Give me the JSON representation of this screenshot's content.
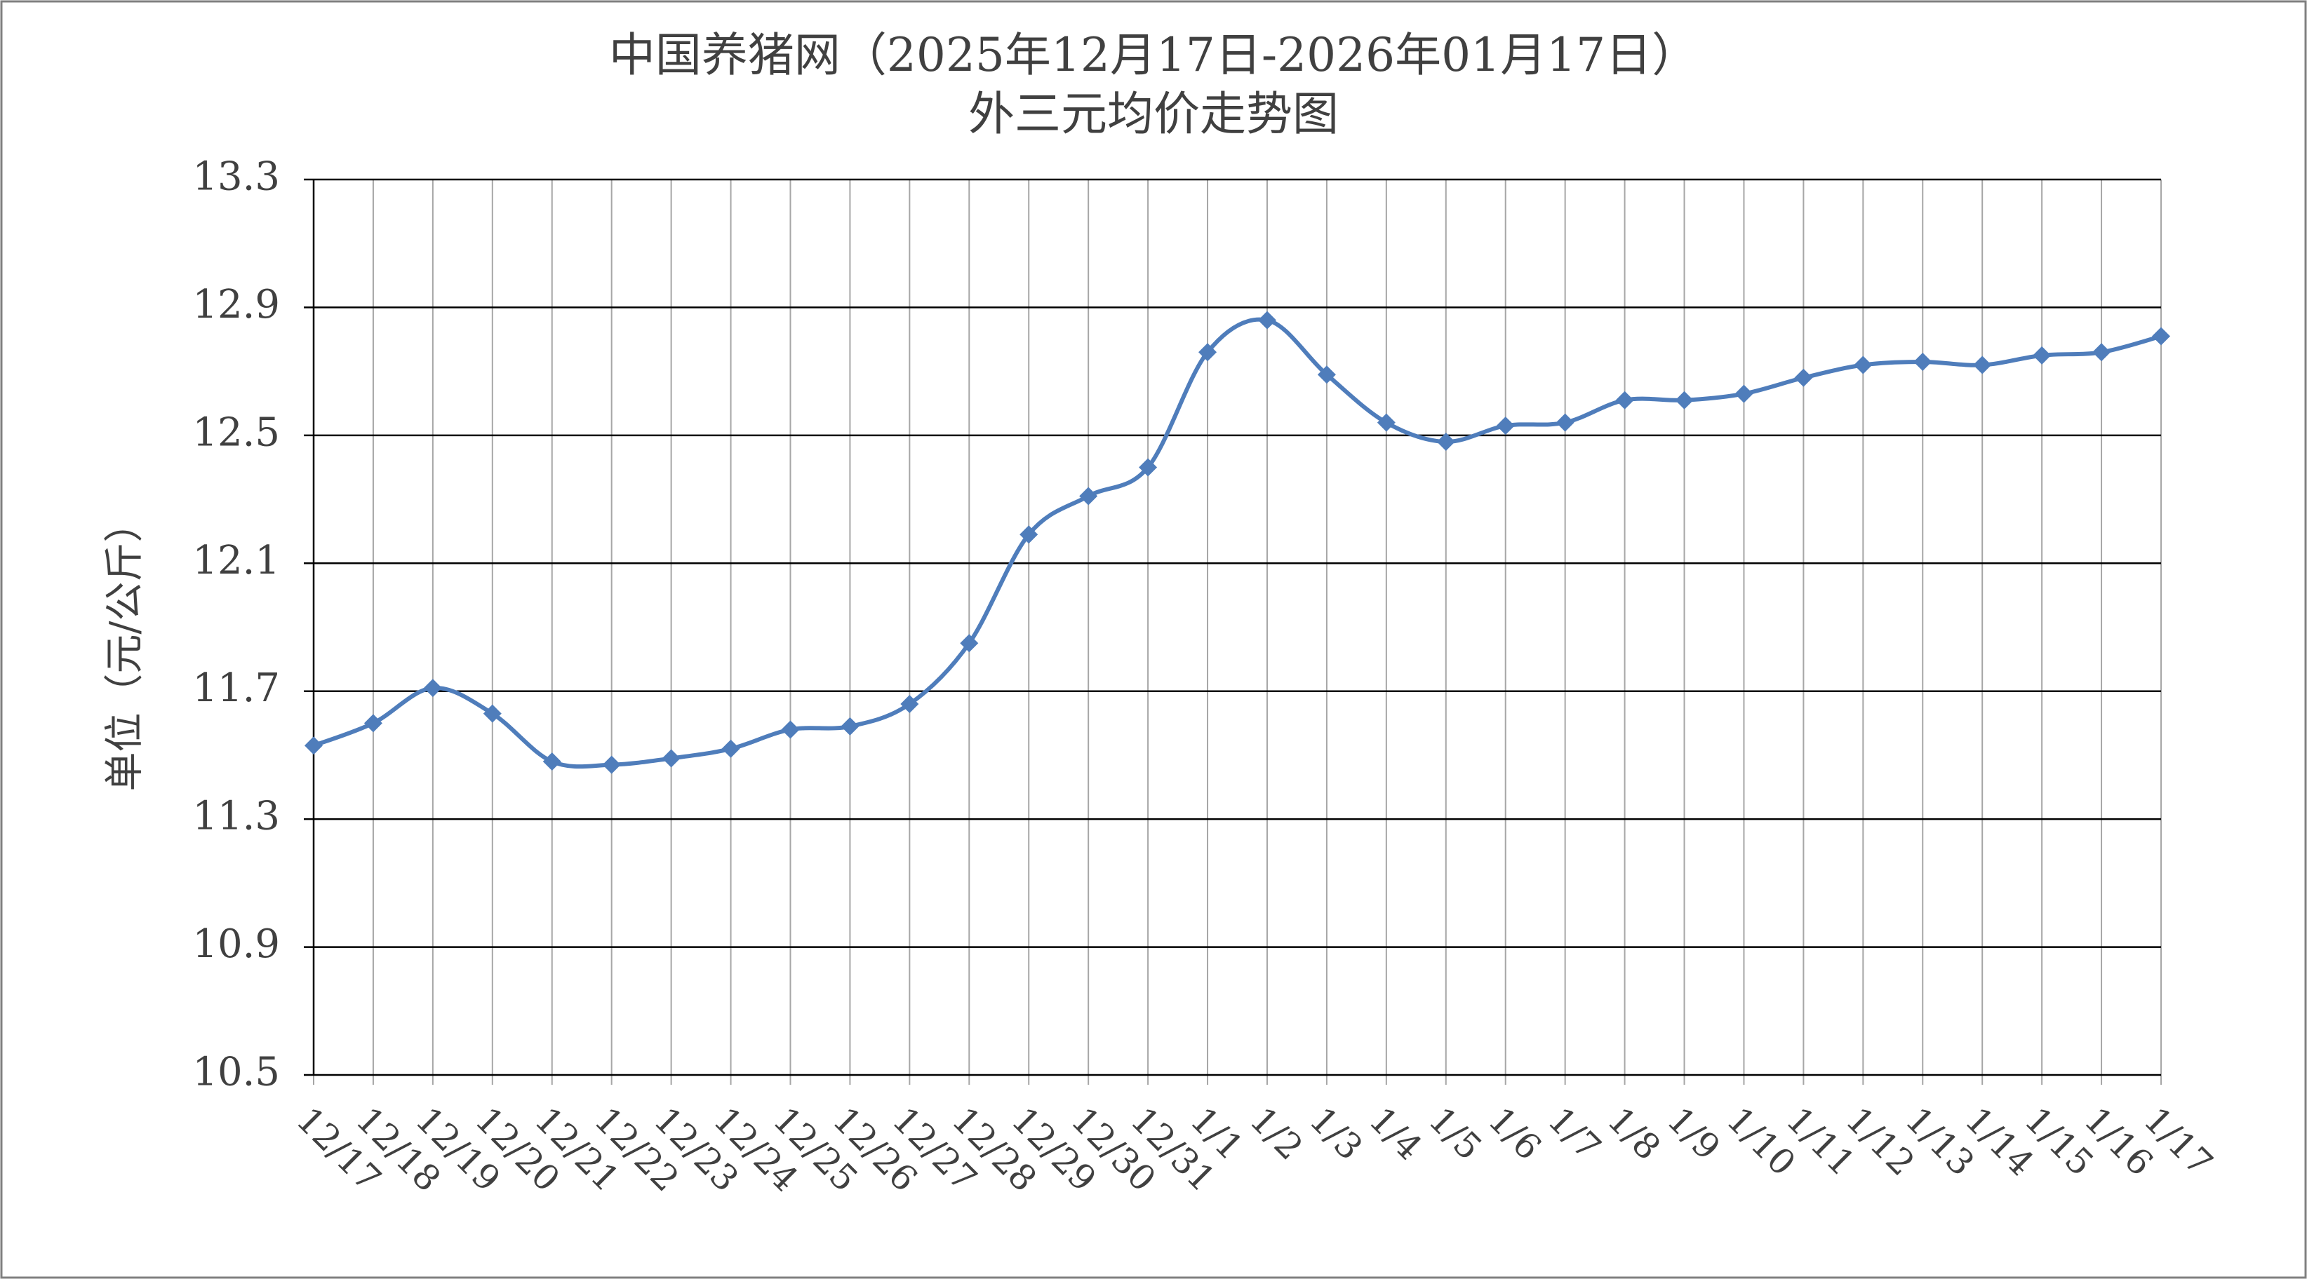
{
  "chart_data": {
    "type": "line",
    "title": [
      "中国养猪网（2025年12月17日-2026年01月17日）",
      "外三元均价走势图"
    ],
    "y_label": "单位（元/公斤）",
    "categories": [
      "12/17",
      "12/18",
      "12/19",
      "12/20",
      "12/21",
      "12/22",
      "12/23",
      "12/24",
      "12/25",
      "12/26",
      "12/27",
      "12/28",
      "12/29",
      "12/30",
      "12/31",
      "1/1",
      "1/2",
      "1/3",
      "1/4",
      "1/5",
      "1/6",
      "1/7",
      "1/8",
      "1/9",
      "1/10",
      "1/11",
      "1/12",
      "1/13",
      "1/14",
      "1/15",
      "1/16",
      "1/17"
    ],
    "series": [
      {
        "color": "#4f7dbb",
        "values": [
          11.53,
          11.6,
          11.71,
          11.63,
          11.48,
          11.47,
          11.49,
          11.52,
          11.58,
          11.59,
          11.66,
          11.85,
          12.19,
          12.31,
          12.4,
          12.76,
          12.86,
          12.69,
          12.54,
          12.48,
          12.53,
          12.54,
          12.61,
          12.61,
          12.63,
          12.68,
          12.72,
          12.73,
          12.72,
          12.75,
          12.76,
          12.81
        ]
      }
    ],
    "ylim": [
      10.5,
      13.3
    ],
    "yticks": [
      10.5,
      10.9,
      11.3,
      11.7,
      12.1,
      12.5,
      12.9,
      13.3
    ],
    "grid": true
  }
}
